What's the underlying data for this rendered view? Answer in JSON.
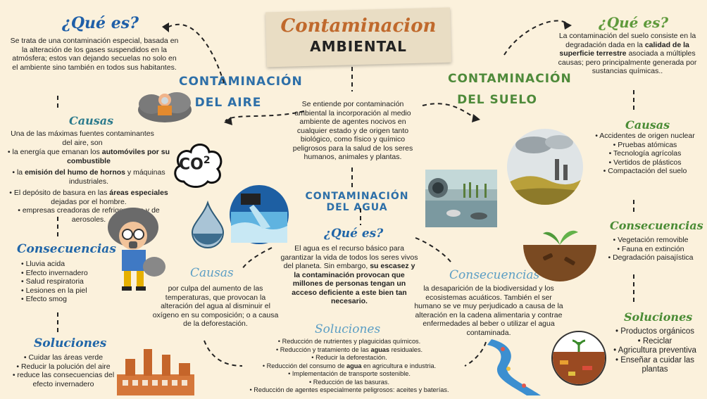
{
  "header": {
    "line1": "Contaminacion",
    "line2": "AMBIENTAL"
  },
  "intro": "Se entiende por contaminación ambiental la incorporación al medio ambiente de agentes nocivos en cualquier estado y de origen tanto biológico, como físico y químico peligrosos para la salud de los seres humanos, animales y plantas.",
  "aire": {
    "title_l1": "CONTAMINACIÓN",
    "title_l2": "DEL AIRE",
    "que_es_title": "¿Qué es?",
    "que_es_text": "Se trata de una contaminación especial, basada en la alteración de los gases suspendidos en la atmósfera; estos van dejando secuelas no solo en el ambiente sino también en todos sus habitantes.",
    "co2_label": "CO",
    "co2_sub": "2",
    "causas_title": "Causas",
    "causas_intro": "Una de las máximas fuentes contaminantes del aire, son",
    "causas": [
      {
        "pre": "la energía que emanan los ",
        "bold": "automóviles por su combustible",
        "post": ""
      },
      {
        "pre": "la ",
        "bold": "emisión del humo de hornos",
        "post": " y máquinas industriales."
      },
      {
        "pre": "El depósito de basura en las ",
        "bold": "áreas especiales",
        "post": " dejadas por el hombre."
      },
      {
        "pre": "empresas creadoras de refrigerantes y de aerosoles.",
        "bold": "",
        "post": ""
      }
    ],
    "consecuencias_title": "Consecuencias",
    "consecuencias": [
      "Lluvia acida",
      "Efecto invernadero",
      "Salud respiratoria",
      "Lesiones en la piel",
      "Efecto smog"
    ],
    "soluciones_title": "Soluciones",
    "soluciones": [
      "Cuidar las áreas verde",
      "Reducir la polución del aire",
      "reduce las consecuencias del efecto invernadero"
    ]
  },
  "agua": {
    "title": "CONTAMINACIÓN DEL AGUA",
    "que_es_title": "¿Qué es?",
    "que_es_pre": "El agua es el recurso básico para garantizar la vida de todos los seres vivos del planeta. Sin embargo, ",
    "que_es_bold": "su escasez y la contaminación provocan que millones de personas tengan un acceso deficiente a este bien tan necesario.",
    "causas_title": "Causas",
    "causas_text": "por culpa del aumento de las temperaturas, que provocan la alteración del agua al disminuir el oxígeno en su composición; o a causa de la deforestación.",
    "consecuencias_title": "Consecuencias",
    "consecuencias_text": "la desaparición de la biodiversidad y los ecosistemas acuáticos. También el ser humano se ve muy perjudicado a causa de la alteración en la cadena alimentaria y contrae enfermedades al beber o utilizar el agua contaminada.",
    "soluciones_title": "Soluciones",
    "soluciones": [
      {
        "pre": "Reducción de nutrientes y plaguicidas químicos.",
        "bold": "",
        "post": ""
      },
      {
        "pre": "Reducción y tratamiento de las ",
        "bold": "aguas",
        "post": " residuales."
      },
      {
        "pre": "Reducir la deforestación.",
        "bold": "",
        "post": ""
      },
      {
        "pre": "Reducción del consumo de ",
        "bold": "agua",
        "post": " en agricultura e industria."
      },
      {
        "pre": "Implementación de transporte sostenible.",
        "bold": "",
        "post": ""
      },
      {
        "pre": "Reducción de las basuras.",
        "bold": "",
        "post": ""
      },
      {
        "pre": "Reducción de agentes especialmente peligrosos: aceites y baterías.",
        "bold": "",
        "post": ""
      }
    ]
  },
  "suelo": {
    "title_l1": "CONTAMINACIÓN",
    "title_l2": "DEL SUELO",
    "que_es_title": "¿Qué es?",
    "que_es_pre": "La contaminación del suelo consiste en la degradación dada en la ",
    "que_es_bold": "calidad de la superficie terrestre",
    "que_es_post": " asociada a múltiples causas; pero principalmente generada por sustancias químicas..",
    "causas_title": "Causas",
    "causas": [
      "Accidentes de origen nuclear",
      "Pruebas atómicas",
      "Tecnología agrícolas",
      "Vertidos de plásticos",
      "Compactación del suelo"
    ],
    "consecuencias_title": "Consecuencias",
    "consecuencias": [
      "Vegetación removible",
      "Fauna en extinción",
      "Degradación paisajística"
    ],
    "soluciones_title": "Soluciones",
    "soluciones": [
      "Productos orgánicos",
      "Reciclar",
      "Agricultura preventiva",
      "Enseñar a cuidar las plantas"
    ]
  },
  "colors": {
    "background": "#fbf1dc",
    "blue": "#1f5fa8",
    "green": "#5f9a3c",
    "brown": "#c0692c"
  }
}
